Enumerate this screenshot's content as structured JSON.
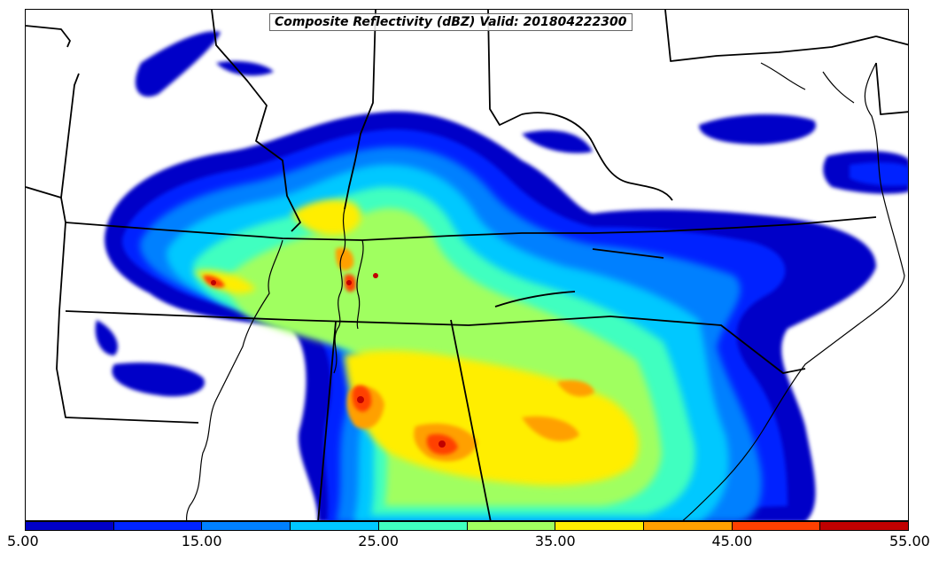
{
  "title": "Composite Reflectivity (dBZ) Valid: 201804222300",
  "colorbar": {
    "colors": [
      "#0000c8",
      "#0024ff",
      "#0080ff",
      "#00c8ff",
      "#40ffc0",
      "#a0ff60",
      "#ffee00",
      "#ffa000",
      "#ff4000",
      "#c00000"
    ],
    "tick_labels": [
      "5.00",
      "15.00",
      "25.00",
      "35.00",
      "45.00",
      "55.00"
    ],
    "min": 5,
    "max": 55,
    "step": 5
  }
}
